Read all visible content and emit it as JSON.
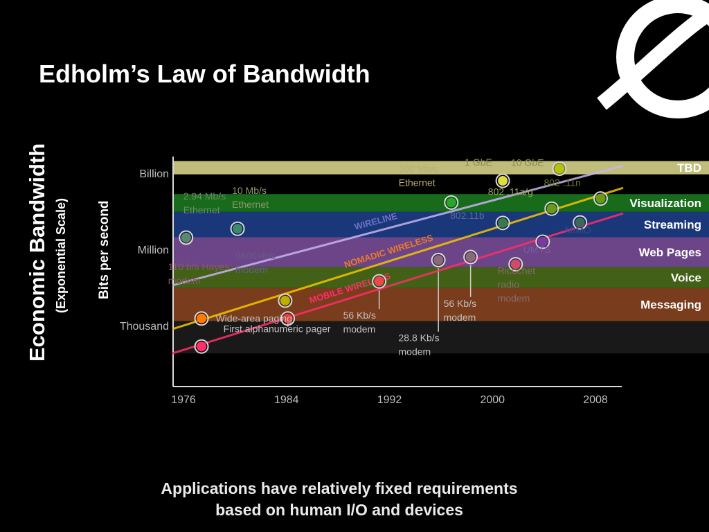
{
  "slide": {
    "title": "Edholm’s Law of Bandwidth",
    "footer_lines": [
      "Applications have relatively fixed requirements",
      "based on human I/O and devices"
    ]
  },
  "chart_data": {
    "type": "line",
    "title": "Edholm’s Law of Bandwidth",
    "ylabel": "Economic Bandwidth",
    "ylabel_sub": "(Exponential Scale)",
    "ylabel_inner": "Bits per second",
    "y_scale": "log",
    "xlim": [
      1974,
      2010
    ],
    "y_ticks": [
      {
        "label": "Thousand",
        "value": 1000
      },
      {
        "label": "Million",
        "value": 1000000
      },
      {
        "label": "Billion",
        "value": 1000000000
      }
    ],
    "x_ticks": [
      1976,
      1984,
      1992,
      2000,
      2008
    ],
    "bands": [
      {
        "name": "TBD",
        "from": 900000000,
        "to": 3000000000,
        "color": "#d9d78a",
        "label_color": "#ffffff"
      },
      {
        "name": "Visualization",
        "from": 30000000,
        "to": 150000000,
        "color": "#1a7a1f",
        "label_color": "#ffffff"
      },
      {
        "name": "Streaming",
        "from": 3000000,
        "to": 30000000,
        "color": "#1e3f8a",
        "label_color": "#ffffff"
      },
      {
        "name": "Web Pages",
        "from": 200000,
        "to": 3000000,
        "color": "#7a4f9a",
        "label_color": "#ffffff"
      },
      {
        "name": "Voice",
        "from": 30000,
        "to": 200000,
        "color": "#4b6e1a",
        "label_color": "#ffffff"
      },
      {
        "name": "Messaging",
        "from": 1500,
        "to": 30000,
        "color": "#8a4420",
        "label_color": "#ffffff"
      },
      {
        "name": "",
        "from": 80,
        "to": 1500,
        "color": "#1c1c1c",
        "label_color": "#ffffff"
      }
    ],
    "series": [
      {
        "name": "WIRELINE",
        "color": "#c9b3f0",
        "label_color": "#7070c8",
        "label_x": 1991,
        "start": [
          1976,
          50000
        ],
        "end": [
          2008,
          1000000000
        ]
      },
      {
        "name": "NOMADIC WIRELESS",
        "color": "#f5c400",
        "label_color": "#ee7a2a",
        "label_x": 1992,
        "start": [
          1976,
          1000
        ],
        "end": [
          2008,
          120000000
        ]
      },
      {
        "name": "MOBILE WIRELESS",
        "color": "#ff2d6a",
        "label_color": "#ff2d6a",
        "label_x": 1989,
        "start": [
          1976,
          110
        ],
        "end": [
          2008,
          12000000
        ]
      }
    ],
    "points": [
      {
        "year": 2005.2,
        "value": 1500000000,
        "color": "#b5c400",
        "label": "10 GbE",
        "label_dx": -70,
        "label_dy": -4,
        "label_color": "#8c8b52"
      },
      {
        "year": 2000.8,
        "value": 500000000,
        "color": "#dede40",
        "label": "1 GbE",
        "label_dx": -55,
        "label_dy": -22,
        "label_color": "#8c8b52"
      },
      {
        "year": 1996.8,
        "value": 70000000,
        "color": "#2aa62a",
        "label": "100 Mb/s Ethernet",
        "label_dx": -76,
        "label_dy": -44,
        "label_color": "#b5b07a"
      },
      {
        "year": 1980.2,
        "value": 6500000,
        "color": "#3c8a6e",
        "label": "10 Mb/s Ethernet",
        "label_dx": -8,
        "label_dy": -50,
        "label_color": "#8a9a6a"
      },
      {
        "year": 1976.2,
        "value": 2900000,
        "color": "#5a8a6e",
        "label": "2.94 Mb/s Ethernet",
        "label_dx": -4,
        "label_dy": -55,
        "label_color": "#6a8a6a"
      },
      {
        "year": 2008.4,
        "value": 100000000,
        "color": "#6a9a1a",
        "label": "802 .11n",
        "label_dx": -82,
        "label_dy": -18,
        "label_color": "#6a7a2a"
      },
      {
        "year": 2004.6,
        "value": 40000000,
        "color": "#6a9a1a",
        "label": "802 .11a/g",
        "label_dx": -92,
        "label_dy": -20,
        "label_color": "#9aaa5a"
      },
      {
        "year": 2000.8,
        "value": 11000000,
        "color": "#3a7a4a",
        "label": "802.11b",
        "label_dx": -76,
        "label_dy": -6,
        "label_color": "#5a6a9a"
      },
      {
        "year": 2006.8,
        "value": 11500000,
        "color": "#3a6a5a",
        "label": "MIMO",
        "label_dx": -22,
        "label_dy": 16,
        "label_color": "#3a4a8a"
      },
      {
        "year": 2003.9,
        "value": 2000000,
        "color": "#7a3aa0",
        "label": "UMTS",
        "label_dx": -28,
        "label_dy": 16,
        "label_color": "#7a5aa0"
      },
      {
        "year": 1998.3,
        "value": 500000,
        "color": "#8a6a7a",
        "label": "",
        "label_dx": 0,
        "label_dy": 0,
        "label_color": "#8a6a7a"
      },
      {
        "year": 1995.8,
        "value": 380000,
        "color": "#8a6a7a",
        "label": "",
        "label_dx": 0,
        "label_dy": 0,
        "label_color": "#8a6a7a"
      },
      {
        "year": 2001.8,
        "value": 260000,
        "color": "#d04a6a",
        "label": "Ricochet radio modem",
        "label_dx": -26,
        "label_dy": 14,
        "label_color": "#8a6a6a"
      },
      {
        "year": 1991.2,
        "value": 55000,
        "color": "#e84a4a",
        "label": "",
        "label_dx": 0,
        "label_dy": 0,
        "label_color": "#8a6a7a"
      },
      {
        "year": 1983.9,
        "value": 9600,
        "color": "#bbb000",
        "label": "9600>b/s modem",
        "label_dx": -72,
        "label_dy": -60,
        "label_color": "#6a5a8a"
      },
      {
        "year": 1977.4,
        "value": 1900,
        "color": "#ff7a00",
        "label": "",
        "label_dx": 0,
        "label_dy": 0,
        "label_color": "#8a6a7a"
      },
      {
        "year": 1984.1,
        "value": 1900,
        "color": "#e83a3a",
        "label": "",
        "label_dx": 0,
        "label_dy": 0,
        "label_color": "#8a6a7a"
      },
      {
        "year": 1977.4,
        "value": 150,
        "color": "#ff2d6a",
        "label": "",
        "label_dx": 0,
        "label_dy": 0,
        "label_color": "#8a6a7a"
      }
    ],
    "annotations": [
      {
        "text": "110 b/s Hayes modem",
        "year": 1974.8,
        "value": 150000,
        "color": "#8a5a6a",
        "leader": false,
        "to_value": 0
      },
      {
        "text": "Wide-area paging",
        "year": 1978.5,
        "value": 1400,
        "color": "#c0c0c0",
        "leader": false,
        "to_value": 0
      },
      {
        "text": "First alphanumeric pager",
        "year": 1979.1,
        "value": 550,
        "color": "#c0c0c0",
        "leader": true,
        "leader_year": 1984.1,
        "to_value": 1700
      },
      {
        "text": "56 Kb/s modem",
        "year": 1988.4,
        "value": 1850,
        "color": "#c0c0c0",
        "leader": true,
        "leader_year": 1991.2,
        "to_value": 48000
      },
      {
        "text": "56 Kb/s modem",
        "year": 1996.2,
        "value": 5500,
        "color": "#c0c0c0",
        "leader": true,
        "leader_year": 1998.3,
        "to_value": 450000
      },
      {
        "text": "28.8 Kb/s modem",
        "year": 1992.7,
        "value": 240,
        "color": "#c0c0c0",
        "leader": true,
        "leader_year": 1995.8,
        "to_value": 340000
      }
    ]
  }
}
